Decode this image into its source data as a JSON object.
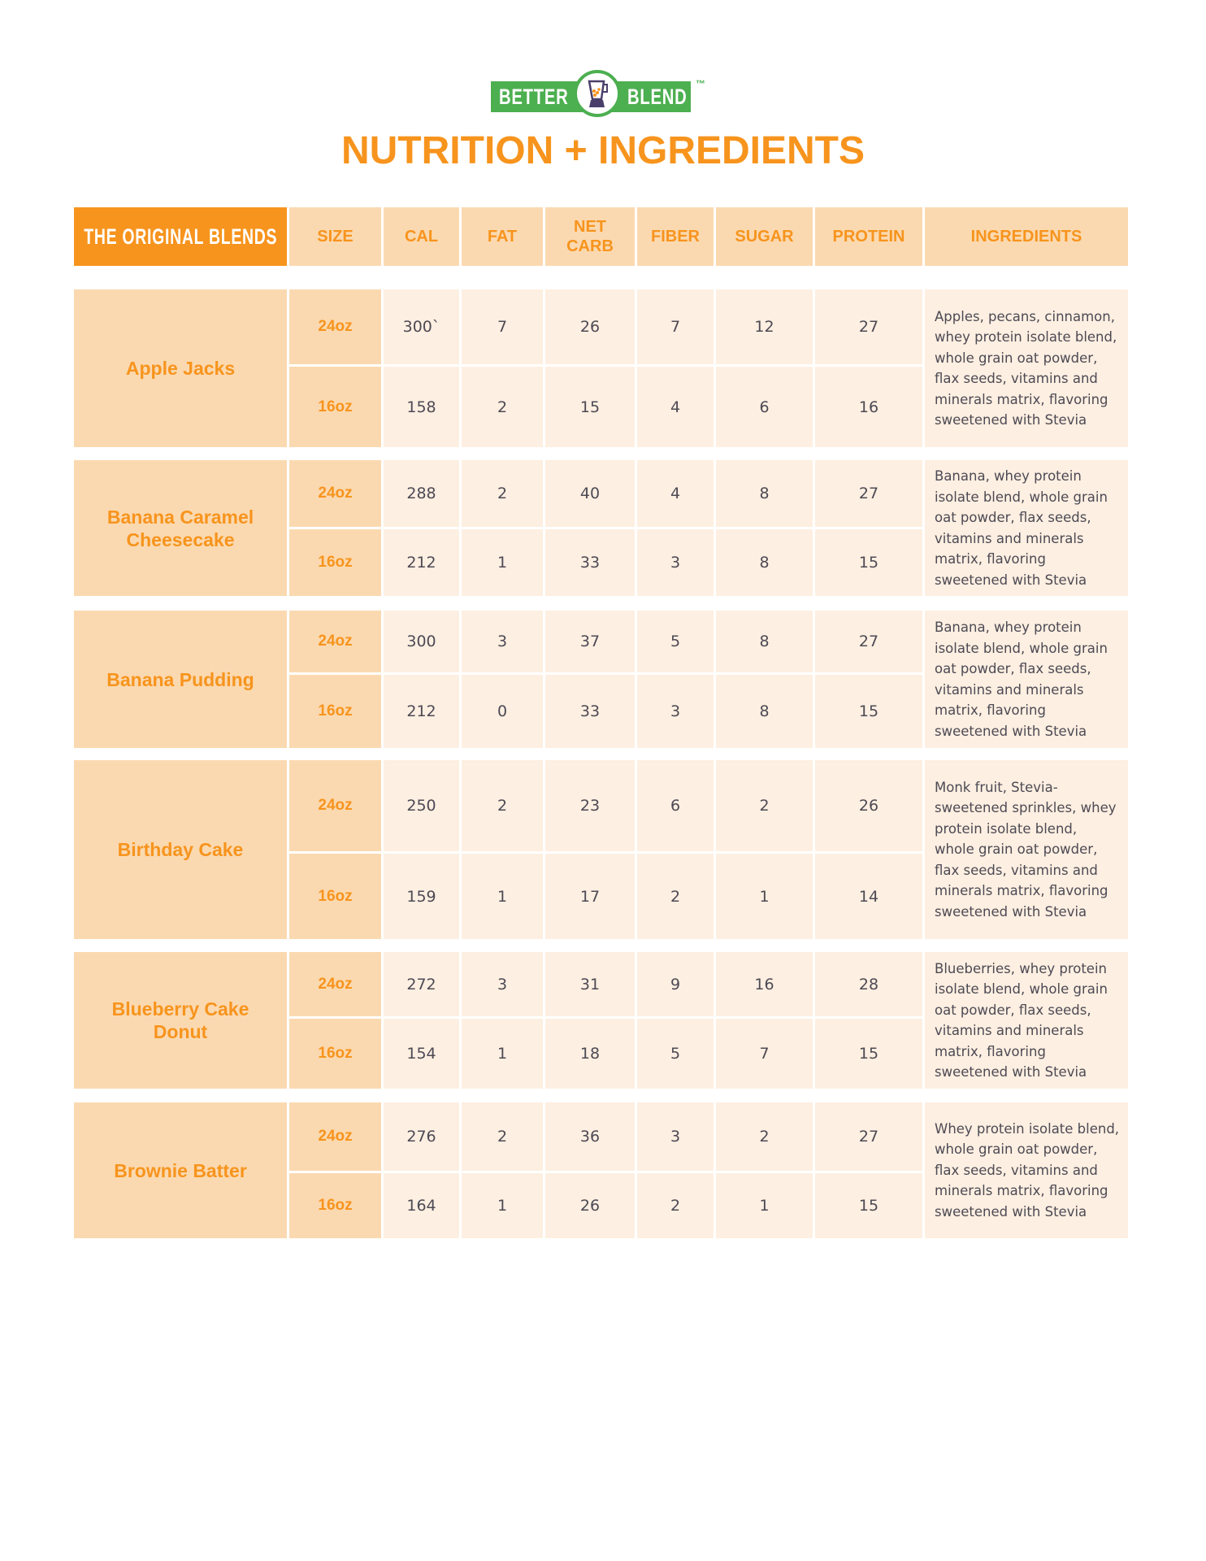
{
  "logo": {
    "left_word": "BETTER",
    "right_word": "BLEND",
    "tm": "™",
    "icon": "blender-icon",
    "color": "#4caf50"
  },
  "title": "NUTRITION + INGREDIENTS",
  "colors": {
    "accent": "#f7941d",
    "header_bg": "#fbd9b0",
    "cell_bg": "#fdefe1",
    "text": "#4d4a55"
  },
  "headers": [
    "THE ORIGINAL BLENDS",
    "SIZE",
    "CAL",
    "FAT",
    "NET CARB",
    "FIBER",
    "SUGAR",
    "PROTEIN",
    "INGREDIENTS"
  ],
  "blends": [
    {
      "name": "Apple Jacks",
      "rows": [
        {
          "size": "24oz",
          "cal": "300`",
          "fat": "7",
          "net_carb": "26",
          "fiber": "7",
          "sugar": "12",
          "protein": "27"
        },
        {
          "size": "16oz",
          "cal": "158",
          "fat": "2",
          "net_carb": "15",
          "fiber": "4",
          "sugar": "6",
          "protein": "16"
        }
      ],
      "ingredients": "Apples, pecans, cinnamon, whey protein isolate blend, whole grain oat powder, flax seeds, vitamins and minerals matrix, flavoring sweetened with Stevia"
    },
    {
      "name": "Banana Caramel Cheesecake",
      "rows": [
        {
          "size": "24oz",
          "cal": "288",
          "fat": "2",
          "net_carb": "40",
          "fiber": "4",
          "sugar": "8",
          "protein": "27"
        },
        {
          "size": "16oz",
          "cal": "212",
          "fat": "1",
          "net_carb": "33",
          "fiber": "3",
          "sugar": "8",
          "protein": "15"
        }
      ],
      "ingredients": "Banana, whey protein isolate blend, whole grain oat powder, flax seeds, vitamins and minerals matrix, flavoring sweetened with Stevia"
    },
    {
      "name": "Banana Pudding",
      "rows": [
        {
          "size": "24oz",
          "cal": "300",
          "fat": "3",
          "net_carb": "37",
          "fiber": "5",
          "sugar": "8",
          "protein": "27"
        },
        {
          "size": "16oz",
          "cal": "212",
          "fat": "0",
          "net_carb": "33",
          "fiber": "3",
          "sugar": "8",
          "protein": "15"
        }
      ],
      "ingredients": "Banana, whey protein isolate blend, whole grain oat powder, flax seeds, vitamins and minerals matrix, flavoring sweetened with Stevia"
    },
    {
      "name": "Birthday Cake",
      "rows": [
        {
          "size": "24oz",
          "cal": "250",
          "fat": "2",
          "net_carb": "23",
          "fiber": "6",
          "sugar": "2",
          "protein": "26"
        },
        {
          "size": "16oz",
          "cal": "159",
          "fat": "1",
          "net_carb": "17",
          "fiber": "2",
          "sugar": "1",
          "protein": "14"
        }
      ],
      "ingredients": "Monk fruit, Stevia-sweetened sprinkles, whey protein isolate blend, whole grain oat powder, flax seeds, vitamins and minerals matrix, flavoring sweetened with Stevia"
    },
    {
      "name": "Blueberry Cake Donut",
      "rows": [
        {
          "size": "24oz",
          "cal": "272",
          "fat": "3",
          "net_carb": "31",
          "fiber": "9",
          "sugar": "16",
          "protein": "28"
        },
        {
          "size": "16oz",
          "cal": "154",
          "fat": "1",
          "net_carb": "18",
          "fiber": "5",
          "sugar": "7",
          "protein": "15"
        }
      ],
      "ingredients": "Blueberries, whey protein isolate blend, whole grain oat powder, flax seeds, vitamins and minerals matrix, flavoring sweetened with Stevia"
    },
    {
      "name": "Brownie Batter",
      "rows": [
        {
          "size": "24oz",
          "cal": "276",
          "fat": "2",
          "net_carb": "36",
          "fiber": "3",
          "sugar": "2",
          "protein": "27"
        },
        {
          "size": "16oz",
          "cal": "164",
          "fat": "1",
          "net_carb": "26",
          "fiber": "2",
          "sugar": "1",
          "protein": "15"
        }
      ],
      "ingredients": "Whey protein isolate blend, whole grain oat powder, flax seeds, vitamins and minerals matrix, flavoring sweetened with Stevia"
    }
  ]
}
